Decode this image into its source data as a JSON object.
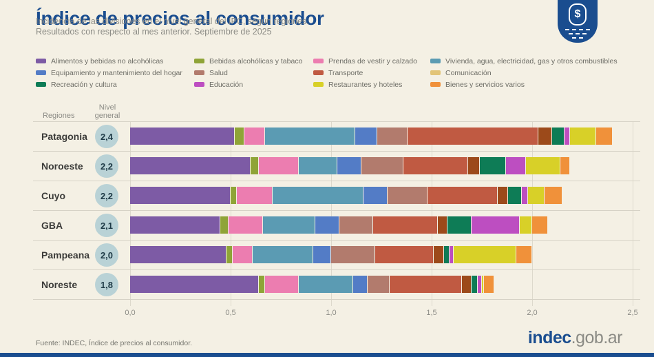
{
  "header": {
    "title": "Índice de precios al consumidor",
    "subtitle_line1": "Incidencia de las divisiones en el nivel general del IPC, según regiones.",
    "subtitle_line2": "Resultados con respecto al mes anterior. Septiembre de 2025",
    "badge": {
      "icon": "peso-money-badge-icon",
      "symbol": "$",
      "color": "#1a4d8f"
    }
  },
  "chart_data": {
    "type": "bar",
    "subtype": "horizontal-stacked",
    "title": "Índice de precios al consumidor",
    "x_axis": {
      "min": 0,
      "max": 2.5,
      "tick_values": [
        0,
        0.5,
        1.0,
        1.5,
        2.0,
        2.5
      ],
      "tick_labels": [
        "0,0",
        "0,5",
        "1,0",
        "1,5",
        "2,0",
        "2,5"
      ],
      "grid": true
    },
    "column_headers": {
      "regions": "Regiones",
      "level_line1": "Nivel",
      "level_line2": "general"
    },
    "divisions": [
      {
        "name": "Alimentos y bebidas no alcohólicas",
        "bar_color": "#7d5ba5",
        "legend_color": "#7d5ba5"
      },
      {
        "name": "Bebidas alcohólicas y tabaco",
        "bar_color": "#8fa437",
        "legend_color": "#8fa437"
      },
      {
        "name": "Prendas de vestir y calzado",
        "bar_color": "#ec7db0",
        "legend_color": "#ec7db0"
      },
      {
        "name": "Vivienda, agua, electricidad, gas y otros combustibles",
        "bar_color": "#5b9bb3",
        "legend_color": "#5b9bb3"
      },
      {
        "name": "Equipamiento y mantenimiento del hogar",
        "bar_color": "#537cc6",
        "legend_color": "#537cc6"
      },
      {
        "name": "Salud",
        "bar_color": "#b27b6d",
        "legend_color": "#b27b6d"
      },
      {
        "name": "Transporte",
        "bar_color": "#c05a42",
        "legend_color": "#c05a42"
      },
      {
        "name": "Comunicación",
        "bar_color": "#9c4a1a",
        "legend_color": "#e2c477"
      },
      {
        "name": "Recreación y cultura",
        "bar_color": "#0e7c56",
        "legend_color": "#0e7c56"
      },
      {
        "name": "Educación",
        "bar_color": "#bd4ec1",
        "legend_color": "#bd4ec1"
      },
      {
        "name": "Restaurantes y hoteles",
        "bar_color": "#d8d028",
        "legend_color": "#d8d028"
      },
      {
        "name": "Bienes y servicios varios",
        "bar_color": "#f0913a",
        "legend_color": "#f0913a"
      }
    ],
    "legend_columns": [
      [
        0,
        4,
        8
      ],
      [
        1,
        5,
        9
      ],
      [
        2,
        6,
        10
      ],
      [
        3,
        7,
        11
      ]
    ],
    "regions": [
      {
        "name": "Patagonia",
        "nivel_general": "2,4",
        "values": [
          0.52,
          0.05,
          0.1,
          0.45,
          0.11,
          0.15,
          0.65,
          0.07,
          0.06,
          0.03,
          0.13,
          0.08
        ]
      },
      {
        "name": "Noroeste",
        "nivel_general": "2,2",
        "values": [
          0.6,
          0.04,
          0.2,
          0.19,
          0.12,
          0.21,
          0.32,
          0.06,
          0.13,
          0.1,
          0.17,
          0.05
        ]
      },
      {
        "name": "Cuyo",
        "nivel_general": "2,2",
        "values": [
          0.5,
          0.03,
          0.18,
          0.45,
          0.12,
          0.2,
          0.35,
          0.05,
          0.07,
          0.03,
          0.08,
          0.09
        ]
      },
      {
        "name": "GBA",
        "nivel_general": "2,1",
        "values": [
          0.45,
          0.04,
          0.17,
          0.26,
          0.12,
          0.17,
          0.32,
          0.05,
          0.12,
          0.24,
          0.06,
          0.08
        ]
      },
      {
        "name": "Pampeana",
        "nivel_general": "2,0",
        "values": [
          0.48,
          0.03,
          0.1,
          0.3,
          0.09,
          0.22,
          0.29,
          0.05,
          0.03,
          0.02,
          0.31,
          0.08
        ]
      },
      {
        "name": "Noreste",
        "nivel_general": "1,8",
        "values": [
          0.64,
          0.03,
          0.17,
          0.27,
          0.07,
          0.11,
          0.36,
          0.05,
          0.03,
          0.02,
          0.01,
          0.05
        ]
      }
    ]
  },
  "footer": {
    "source": "Fuente: INDEC, Índice de precios al consumidor.",
    "logo_bold": "indec",
    "logo_rest": ".gob.ar"
  }
}
